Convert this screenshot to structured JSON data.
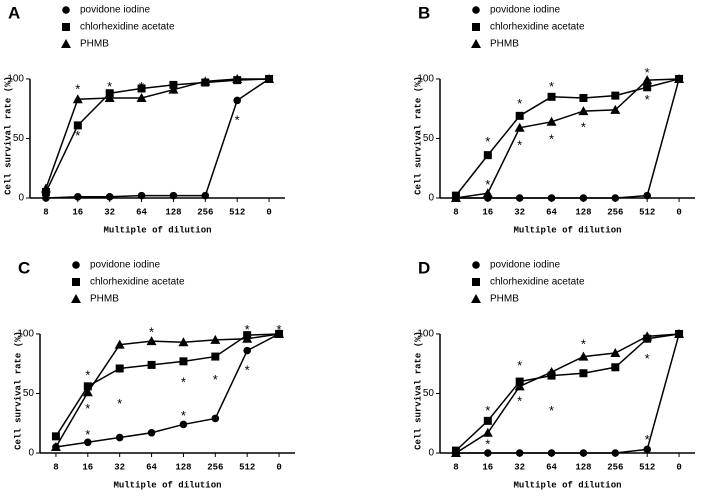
{
  "chart_data": [
    {
      "type": "line",
      "panel_label": "A",
      "xlabel": "Multiple of dilution",
      "ylabel": "Cell survival rate (%)",
      "categories": [
        "8",
        "16",
        "32",
        "64",
        "128",
        "256",
        "512",
        "0"
      ],
      "ylim": [
        0,
        105
      ],
      "yticks": [
        0,
        50,
        100
      ],
      "series": [
        {
          "name": "povidone iodine",
          "color": "#000000",
          "marker": "circle",
          "values": [
            0,
            1,
            1,
            2,
            2,
            2,
            82,
            100
          ]
        },
        {
          "name": "chlorhexidine acetate",
          "color": "#000000",
          "marker": "square",
          "values": [
            5,
            61,
            88,
            92,
            95,
            97,
            99,
            100
          ]
        },
        {
          "name": "PHMB",
          "color": "#000000",
          "marker": "triangle",
          "values": [
            8,
            83,
            84,
            84,
            91,
            98,
            100,
            100
          ]
        }
      ],
      "annotations": [
        {
          "text": "*",
          "x": "16",
          "y": 94
        },
        {
          "text": "*",
          "x": "16",
          "y": 55
        },
        {
          "text": "*",
          "x": "32",
          "y": 96
        },
        {
          "text": "*",
          "x": "64",
          "y": 96
        },
        {
          "text": "*",
          "x": "512",
          "y": 68
        }
      ]
    },
    {
      "type": "line",
      "panel_label": "B",
      "xlabel": "Multiple of dilution",
      "ylabel": "Cell survival rate (%)",
      "categories": [
        "8",
        "16",
        "32",
        "64",
        "128",
        "256",
        "512",
        "0"
      ],
      "ylim": [
        0,
        105
      ],
      "yticks": [
        0,
        50,
        100
      ],
      "series": [
        {
          "name": "povidone iodine",
          "color": "#000000",
          "marker": "circle",
          "values": [
            0,
            0,
            0,
            0,
            0,
            0,
            2,
            100
          ]
        },
        {
          "name": "chlorhexidine acetate",
          "color": "#000000",
          "marker": "square",
          "values": [
            2,
            36,
            69,
            85,
            84,
            86,
            93,
            100
          ]
        },
        {
          "name": "PHMB",
          "color": "#000000",
          "marker": "triangle",
          "values": [
            0,
            4,
            59,
            64,
            73,
            74,
            99,
            100
          ]
        }
      ],
      "annotations": [
        {
          "text": "*",
          "x": "16",
          "y": 50
        },
        {
          "text": "*",
          "x": "16",
          "y": 14
        },
        {
          "text": "*",
          "x": "32",
          "y": 82
        },
        {
          "text": "*",
          "x": "32",
          "y": 47
        },
        {
          "text": "*",
          "x": "64",
          "y": 96
        },
        {
          "text": "*",
          "x": "64",
          "y": 52
        },
        {
          "text": "*",
          "x": "128",
          "y": 62
        },
        {
          "text": "*",
          "x": "512",
          "y": 108
        },
        {
          "text": "*",
          "x": "512",
          "y": 85
        }
      ]
    },
    {
      "type": "line",
      "panel_label": "C",
      "xlabel": "Multiple of dilution",
      "ylabel": "Cell survival rate (%)",
      "categories": [
        "8",
        "16",
        "32",
        "64",
        "128",
        "256",
        "512",
        "0"
      ],
      "ylim": [
        0,
        105
      ],
      "yticks": [
        0,
        50,
        100
      ],
      "series": [
        {
          "name": "povidone iodine",
          "color": "#000000",
          "marker": "circle",
          "values": [
            5,
            9,
            13,
            17,
            24,
            29,
            86,
            100
          ]
        },
        {
          "name": "chlorhexidine acetate",
          "color": "#000000",
          "marker": "square",
          "values": [
            14,
            56,
            71,
            74,
            77,
            81,
            99,
            100
          ]
        },
        {
          "name": "PHMB",
          "color": "#000000",
          "marker": "triangle",
          "values": [
            5,
            51,
            91,
            94,
            93,
            95,
            96,
            100
          ]
        }
      ],
      "annotations": [
        {
          "text": "*",
          "x": "16",
          "y": 68
        },
        {
          "text": "*",
          "x": "16",
          "y": 40
        },
        {
          "text": "*",
          "x": "16",
          "y": 18
        },
        {
          "text": "*",
          "x": "32",
          "y": 44
        },
        {
          "text": "*",
          "x": "64",
          "y": 104
        },
        {
          "text": "*",
          "x": "128",
          "y": 34
        },
        {
          "text": "*",
          "x": "128",
          "y": 62
        },
        {
          "text": "*",
          "x": "256",
          "y": 64
        },
        {
          "text": "*",
          "x": "512",
          "y": 106
        },
        {
          "text": "*",
          "x": "0",
          "y": 106
        },
        {
          "text": "*",
          "x": "512",
          "y": 72
        }
      ]
    },
    {
      "type": "line",
      "panel_label": "D",
      "xlabel": "Multiple of dilution",
      "ylabel": "Cell survival rate (%)",
      "categories": [
        "8",
        "16",
        "32",
        "64",
        "128",
        "256",
        "512",
        "0"
      ],
      "ylim": [
        0,
        105
      ],
      "yticks": [
        0,
        50,
        100
      ],
      "series": [
        {
          "name": "povidone iodine",
          "color": "#000000",
          "marker": "circle",
          "values": [
            0,
            0,
            0,
            0,
            0,
            0,
            3,
            100
          ]
        },
        {
          "name": "chlorhexidine acetate",
          "color": "#000000",
          "marker": "square",
          "values": [
            2,
            27,
            60,
            65,
            67,
            72,
            96,
            100
          ]
        },
        {
          "name": "PHMB",
          "color": "#000000",
          "marker": "triangle",
          "values": [
            0,
            17,
            56,
            68,
            81,
            84,
            98,
            100
          ]
        }
      ],
      "annotations": [
        {
          "text": "*",
          "x": "16",
          "y": 38
        },
        {
          "text": "*",
          "x": "16",
          "y": 10
        },
        {
          "text": "*",
          "x": "32",
          "y": 76
        },
        {
          "text": "*",
          "x": "32",
          "y": 46
        },
        {
          "text": "*",
          "x": "64",
          "y": 38
        },
        {
          "text": "*",
          "x": "128",
          "y": 94
        },
        {
          "text": "*",
          "x": "512",
          "y": 14
        },
        {
          "text": "*",
          "x": "512",
          "y": 82
        }
      ]
    }
  ]
}
